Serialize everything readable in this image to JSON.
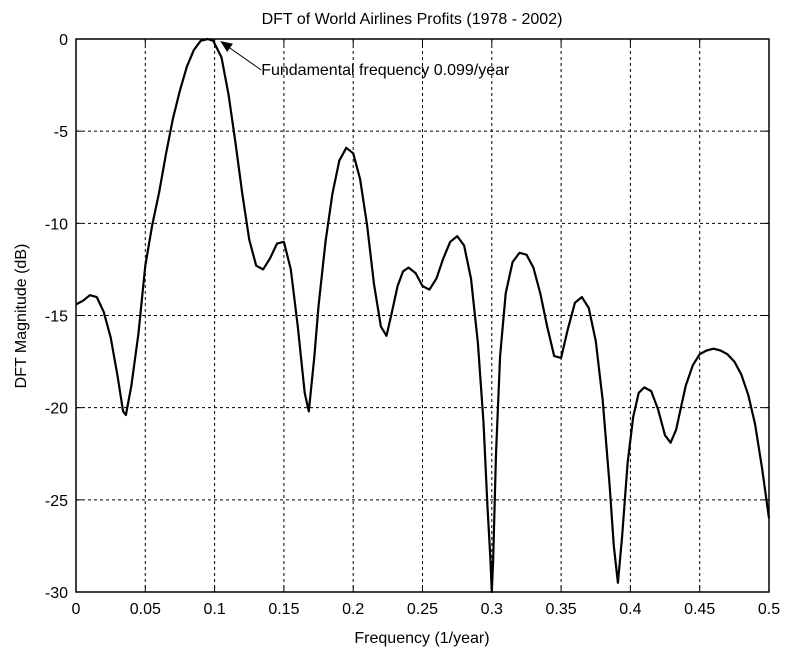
{
  "chart_data": {
    "type": "line",
    "title": "DFT of World Airlines Profits (1978 - 2002)",
    "xlabel": "Frequency  (1/year)",
    "ylabel": "DFT Magnitude (dB)",
    "xlim": [
      0,
      0.5
    ],
    "ylim": [
      -30,
      0
    ],
    "xticks": [
      0,
      0.05,
      0.1,
      0.15,
      0.2,
      0.25,
      0.3,
      0.35,
      0.4,
      0.45,
      0.5
    ],
    "xtick_labels": [
      "0",
      "0.05",
      "0.1",
      "0.15",
      "0.2",
      "0.25",
      "0.3",
      "0.35",
      "0.4",
      "0.45",
      "0.5"
    ],
    "yticks": [
      0,
      -5,
      -10,
      -15,
      -20,
      -25,
      -30
    ],
    "ytick_labels": [
      "0",
      "-5",
      "-10",
      "-15",
      "-20",
      "-25",
      "-30"
    ],
    "grid": true,
    "series": [
      {
        "color": "#000000",
        "x": [
          0,
          0.005,
          0.01,
          0.015,
          0.02,
          0.025,
          0.03,
          0.034,
          0.036,
          0.04,
          0.045,
          0.05,
          0.055,
          0.06,
          0.065,
          0.07,
          0.075,
          0.08,
          0.085,
          0.09,
          0.095,
          0.099,
          0.105,
          0.11,
          0.115,
          0.12,
          0.125,
          0.13,
          0.135,
          0.14,
          0.145,
          0.15,
          0.155,
          0.16,
          0.165,
          0.168,
          0.172,
          0.175,
          0.18,
          0.185,
          0.19,
          0.195,
          0.2,
          0.205,
          0.21,
          0.215,
          0.22,
          0.224,
          0.228,
          0.232,
          0.236,
          0.24,
          0.245,
          0.25,
          0.255,
          0.26,
          0.265,
          0.27,
          0.275,
          0.28,
          0.285,
          0.29,
          0.294,
          0.297,
          0.299,
          0.3,
          0.301,
          0.303,
          0.306,
          0.31,
          0.315,
          0.32,
          0.325,
          0.33,
          0.335,
          0.34,
          0.345,
          0.35,
          0.355,
          0.36,
          0.365,
          0.37,
          0.375,
          0.38,
          0.385,
          0.388,
          0.391,
          0.394,
          0.398,
          0.402,
          0.406,
          0.41,
          0.415,
          0.42,
          0.425,
          0.429,
          0.433,
          0.437,
          0.44,
          0.445,
          0.45,
          0.455,
          0.46,
          0.465,
          0.47,
          0.475,
          0.48,
          0.485,
          0.49,
          0.495,
          0.5
        ],
        "y": [
          -14.4,
          -14.2,
          -13.9,
          -14.0,
          -14.8,
          -16.2,
          -18.3,
          -20.2,
          -20.4,
          -18.8,
          -16.0,
          -12.3,
          -10.1,
          -8.3,
          -6.2,
          -4.3,
          -2.8,
          -1.5,
          -0.6,
          -0.1,
          0,
          -0.1,
          -1.0,
          -3.0,
          -5.6,
          -8.4,
          -10.9,
          -12.3,
          -12.5,
          -11.9,
          -11.1,
          -11.0,
          -12.5,
          -15.6,
          -19.2,
          -20.2,
          -17.2,
          -14.5,
          -11.0,
          -8.4,
          -6.6,
          -5.9,
          -6.2,
          -7.6,
          -10.1,
          -13.3,
          -15.6,
          -16.1,
          -14.8,
          -13.4,
          -12.6,
          -12.4,
          -12.7,
          -13.4,
          -13.6,
          -13.0,
          -11.9,
          -11.0,
          -10.7,
          -11.2,
          -13.0,
          -16.5,
          -20.8,
          -25.5,
          -28.2,
          -30,
          -28.2,
          -22.5,
          -17.2,
          -13.8,
          -12.1,
          -11.6,
          -11.7,
          -12.4,
          -13.8,
          -15.6,
          -17.2,
          -17.3,
          -15.7,
          -14.3,
          -14.0,
          -14.6,
          -16.4,
          -19.6,
          -24.2,
          -27.5,
          -29.5,
          -27.0,
          -23.0,
          -20.5,
          -19.2,
          -18.9,
          -19.1,
          -20.1,
          -21.5,
          -21.9,
          -21.2,
          -19.8,
          -18.8,
          -17.7,
          -17.1,
          -16.9,
          -16.8,
          -16.9,
          -17.1,
          -17.5,
          -18.2,
          -19.3,
          -20.9,
          -23.3,
          -26.0
        ]
      }
    ],
    "annotations": [
      {
        "text": "Fundamental frequency 0.099/year",
        "x": 0.099,
        "y": 0
      }
    ]
  }
}
